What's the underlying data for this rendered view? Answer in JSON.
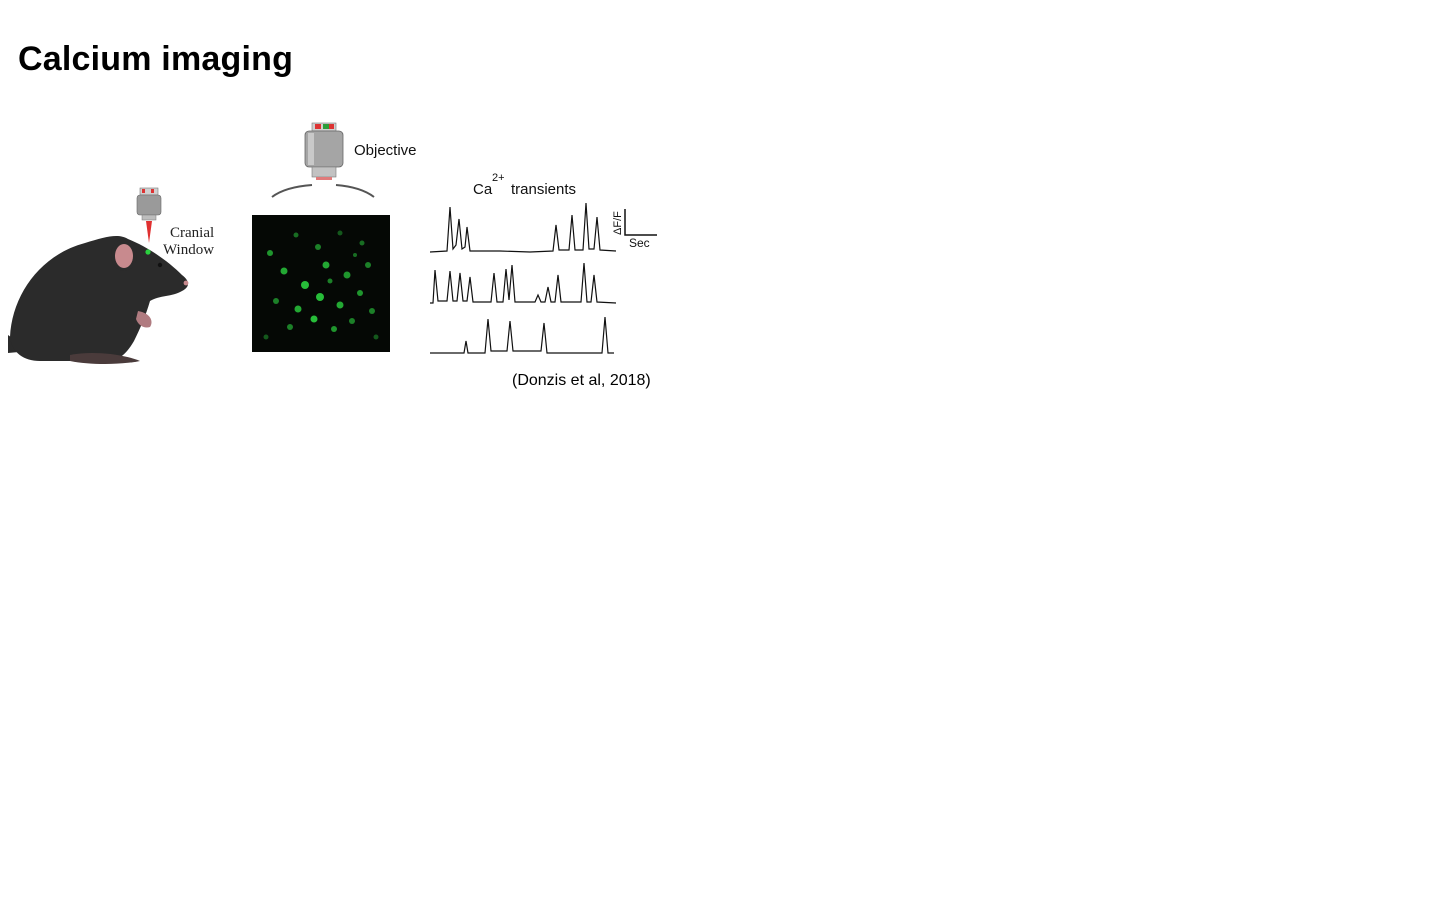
{
  "page": {
    "title": "Calcium imaging"
  },
  "figure": {
    "labels": {
      "cranial_window_line1": "Cranial",
      "cranial_window_line2": "Window",
      "objective": "Objective",
      "transients_prefix": "Ca",
      "transients_superscript": "2+",
      "transients_suffix": "transients",
      "scale_y": "ΔF/F",
      "scale_x": "Sec"
    },
    "citation": "(Donzis et al, 2018)",
    "colors": {
      "mouse_body": "#2b2b2b",
      "ear": "#c88a8e",
      "laser": "#e03030",
      "fluorescence": "#2bd13f",
      "field_bg": "#050805",
      "trace": "#111111"
    },
    "icons": [
      "mouse-illustration",
      "objective-lens-icon",
      "small-objective-icon",
      "fluorescence-image"
    ]
  }
}
